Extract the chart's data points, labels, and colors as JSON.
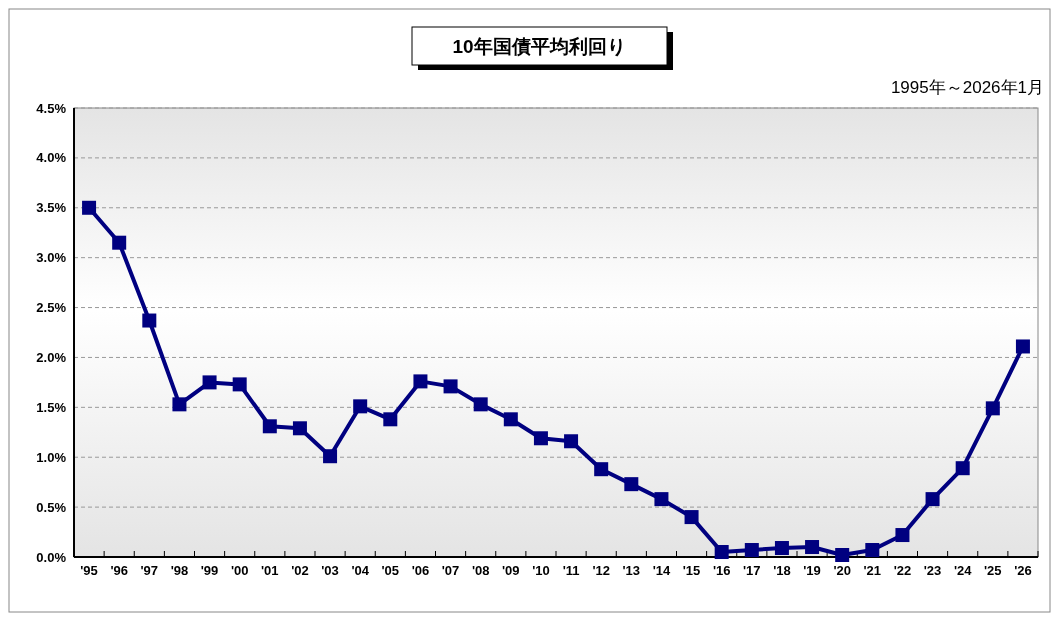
{
  "chart_data": {
    "type": "line",
    "title": "10年国債平均利回り",
    "subtitle": "1995年～2026年1月",
    "categories": [
      "'95",
      "'96",
      "'97",
      "'98",
      "'99",
      "'00",
      "'01",
      "'02",
      "'03",
      "'04",
      "'05",
      "'06",
      "'07",
      "'08",
      "'09",
      "'10",
      "'11",
      "'12",
      "'13",
      "'14",
      "'15",
      "'16",
      "'17",
      "'18",
      "'19",
      "'20",
      "'21",
      "'22",
      "'23",
      "'24",
      "'25",
      "'26"
    ],
    "series": [
      {
        "color": "#000080",
        "values": [
          3.5,
          3.15,
          2.37,
          1.53,
          1.75,
          1.73,
          1.31,
          1.29,
          1.01,
          1.51,
          1.38,
          1.76,
          1.71,
          1.53,
          1.38,
          1.19,
          1.16,
          0.88,
          0.73,
          0.58,
          0.4,
          0.05,
          0.07,
          0.09,
          0.1,
          0.02,
          0.07,
          0.22,
          0.58,
          0.89,
          1.49,
          2.11
        ]
      }
    ],
    "ylim": [
      0,
      4.5
    ],
    "yticks": [
      {
        "value": 0,
        "label": "0.0%"
      },
      {
        "value": 0.5,
        "label": "0.5%"
      },
      {
        "value": 1,
        "label": "1.0%"
      },
      {
        "value": 1.5,
        "label": "1.5%"
      },
      {
        "value": 2,
        "label": "2.0%"
      },
      {
        "value": 2.5,
        "label": "2.5%"
      },
      {
        "value": 3,
        "label": "3.0%"
      },
      {
        "value": 3.5,
        "label": "3.5%"
      },
      {
        "value": 4,
        "label": "4.0%"
      },
      {
        "value": 4.5,
        "label": "4.5%"
      }
    ],
    "grid": "y",
    "marker": "square",
    "line_style": "solid"
  }
}
